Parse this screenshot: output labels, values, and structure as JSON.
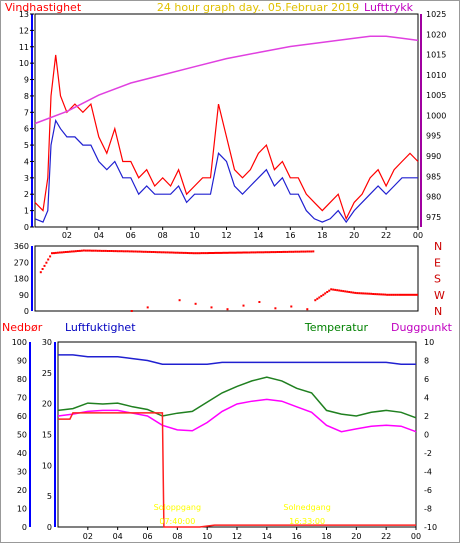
{
  "title": "24 hour graph day.. 05.Februar 2019",
  "colors": {
    "wind": "#ff0000",
    "pressure": "#e040e0",
    "humidity": "#2020d0",
    "temperature": "#208020",
    "dewpoint": "#ff00ff",
    "precip": "#ff2020",
    "sun": "#ffff00",
    "axis_left": "#0000ff",
    "axis_right": "#a000a0"
  },
  "chart_data": [
    {
      "type": "line",
      "id": "wind-pressure",
      "labels": {
        "left": "Vindhastighet",
        "right": "Lufttrykk"
      },
      "x_ticks": [
        "02",
        "04",
        "06",
        "08",
        "10",
        "12",
        "14",
        "16",
        "18",
        "20",
        "22",
        "00"
      ],
      "y_left": {
        "range": [
          0,
          13
        ],
        "ticks": [
          0,
          1,
          2,
          3,
          4,
          5,
          6,
          7,
          8,
          9,
          10,
          11,
          12,
          13
        ]
      },
      "y_right": {
        "range": [
          972.5,
          1025
        ],
        "ticks": [
          975,
          980,
          985,
          990,
          995,
          1000,
          1005,
          1010,
          1015,
          1020,
          1025
        ]
      },
      "series": [
        {
          "key": "gust",
          "axis": "left",
          "x": [
            0.0,
            0.5,
            0.8,
            1.0,
            1.3,
            1.6,
            2.0,
            2.5,
            3.0,
            3.5,
            4.0,
            4.5,
            5.0,
            5.5,
            6.0,
            6.5,
            7.0,
            7.5,
            8.0,
            8.5,
            9.0,
            9.5,
            10.0,
            10.5,
            11.0,
            11.5,
            12.0,
            12.5,
            13.0,
            13.5,
            14.0,
            14.5,
            15.0,
            15.5,
            16.0,
            16.5,
            17.0,
            17.5,
            18.0,
            18.5,
            19.0,
            19.5,
            20.0,
            20.5,
            21.0,
            21.5,
            22.0,
            22.5,
            23.0,
            23.5,
            24.0
          ],
          "y": [
            1.5,
            1.0,
            3.0,
            8.0,
            10.5,
            8.0,
            7.0,
            7.5,
            7.0,
            7.5,
            5.5,
            4.5,
            6.0,
            4.0,
            4.0,
            3.0,
            3.5,
            2.5,
            3.0,
            2.5,
            3.5,
            2.0,
            2.5,
            3.0,
            3.0,
            7.5,
            5.5,
            3.5,
            3.0,
            3.5,
            4.5,
            5.0,
            3.5,
            4.0,
            3.0,
            3.0,
            2.0,
            1.5,
            1.0,
            1.5,
            2.0,
            0.5,
            1.5,
            2.0,
            3.0,
            3.5,
            2.5,
            3.5,
            4.0,
            4.5,
            4.0
          ]
        },
        {
          "key": "wind",
          "axis": "left",
          "x": [
            0.0,
            0.5,
            0.8,
            1.0,
            1.3,
            1.6,
            2.0,
            2.5,
            3.0,
            3.5,
            4.0,
            4.5,
            5.0,
            5.5,
            6.0,
            6.5,
            7.0,
            7.5,
            8.0,
            8.5,
            9.0,
            9.5,
            10.0,
            10.5,
            11.0,
            11.5,
            12.0,
            12.5,
            13.0,
            13.5,
            14.0,
            14.5,
            15.0,
            15.5,
            16.0,
            16.5,
            17.0,
            17.5,
            18.0,
            18.5,
            19.0,
            19.5,
            20.0,
            20.5,
            21.0,
            21.5,
            22.0,
            22.5,
            23.0,
            23.5,
            24.0
          ],
          "y": [
            0.5,
            0.3,
            1.0,
            5.0,
            6.5,
            6.0,
            5.5,
            5.5,
            5.0,
            5.0,
            4.0,
            3.5,
            4.0,
            3.0,
            3.0,
            2.0,
            2.5,
            2.0,
            2.0,
            2.0,
            2.5,
            1.5,
            2.0,
            2.0,
            2.0,
            4.5,
            4.0,
            2.5,
            2.0,
            2.5,
            3.0,
            3.5,
            2.5,
            3.0,
            2.0,
            2.0,
            1.0,
            0.5,
            0.3,
            0.5,
            1.0,
            0.3,
            1.0,
            1.5,
            2.0,
            2.5,
            2.0,
            2.5,
            3.0,
            3.0,
            3.0
          ]
        },
        {
          "key": "pressure",
          "axis": "right",
          "x": [
            0,
            2,
            4,
            6,
            8,
            10,
            12,
            14,
            16,
            18,
            20,
            21,
            22,
            23,
            24
          ],
          "y": [
            998,
            1001,
            1005,
            1008,
            1010,
            1012,
            1014,
            1015.5,
            1017,
            1018,
            1019,
            1019.5,
            1019.5,
            1019,
            1018.5
          ]
        }
      ]
    },
    {
      "type": "scatter",
      "id": "wind-direction",
      "y_ticks": [
        0,
        90,
        180,
        270,
        360
      ],
      "y_labels": [
        "0",
        "90",
        "180",
        "270",
        "360"
      ],
      "compass": [
        "N",
        "W",
        "S",
        "E",
        "N"
      ],
      "series": [
        {
          "key": "dir_main",
          "segments": [
            [
              0.3,
              215
            ],
            [
              1.0,
              320
            ],
            [
              3.0,
              335
            ],
            [
              6.0,
              330
            ],
            [
              10.0,
              320
            ],
            [
              14.0,
              325
            ],
            [
              17.5,
              330
            ]
          ]
        },
        {
          "key": "dir_evening",
          "segments": [
            [
              17.5,
              60
            ],
            [
              18.5,
              120
            ],
            [
              20.0,
              100
            ],
            [
              22.0,
              90
            ],
            [
              24.0,
              90
            ]
          ]
        },
        {
          "key": "dir_sparse",
          "points": [
            [
              6.0,
              0
            ],
            [
              7.0,
              20
            ],
            [
              9.0,
              60
            ],
            [
              10.0,
              40
            ],
            [
              11.0,
              20
            ],
            [
              12.0,
              10
            ],
            [
              13.0,
              30
            ],
            [
              14.0,
              50
            ],
            [
              15.0,
              15
            ],
            [
              16.0,
              25
            ],
            [
              17.0,
              10
            ]
          ]
        }
      ]
    },
    {
      "type": "line",
      "id": "precip-humidity-temp",
      "labels": {
        "precip": "Nedbør",
        "humidity": "Luftfuktighet",
        "temperature": "Temperatur",
        "dewpoint": "Duggpunkt"
      },
      "x_ticks": [
        "02",
        "04",
        "06",
        "08",
        "10",
        "12",
        "14",
        "16",
        "18",
        "20",
        "22",
        "00"
      ],
      "y_humidity": {
        "range": [
          0,
          100
        ],
        "ticks": [
          0,
          10,
          20,
          30,
          40,
          50,
          60,
          70,
          80,
          90,
          100
        ]
      },
      "y_precip": {
        "range": [
          0,
          30
        ],
        "ticks": [
          0,
          5,
          10,
          15,
          20,
          25,
          30
        ]
      },
      "y_temp": {
        "range": [
          -10,
          10
        ],
        "ticks": [
          -10,
          -8,
          -6,
          -4,
          -2,
          0,
          2,
          4,
          6,
          8,
          10
        ]
      },
      "annotations": [
        {
          "text": "Soloppgang",
          "x": 8.0
        },
        {
          "text": "Solnedgang",
          "x": 16.7
        },
        {
          "text": "07:40:00",
          "x": 8.0
        },
        {
          "text": "16:33:00",
          "x": 16.7
        }
      ],
      "series": [
        {
          "key": "humidity",
          "axis": "humidity",
          "x": [
            0,
            1,
            2,
            3,
            4,
            5,
            6,
            7,
            8,
            9,
            10,
            11,
            12,
            13,
            14,
            15,
            16,
            17,
            18,
            19,
            20,
            21,
            22,
            23,
            24
          ],
          "y": [
            93,
            93,
            92,
            92,
            92,
            91,
            90,
            88,
            88,
            88,
            88,
            89,
            89,
            89,
            89,
            89,
            89,
            89,
            89,
            89,
            89,
            89,
            89,
            88,
            88
          ]
        },
        {
          "key": "temperature",
          "axis": "temp",
          "x": [
            0,
            1,
            2,
            3,
            4,
            5,
            6,
            7,
            8,
            9,
            10,
            11,
            12,
            13,
            14,
            15,
            16,
            17,
            18,
            19,
            20,
            21,
            22,
            23,
            24
          ],
          "y": [
            2.6,
            2.8,
            3.4,
            3.3,
            3.4,
            3.0,
            2.7,
            2.0,
            2.3,
            2.5,
            3.5,
            4.5,
            5.2,
            5.8,
            6.2,
            5.8,
            5.0,
            4.5,
            2.6,
            2.2,
            2.0,
            2.4,
            2.6,
            2.4,
            1.8
          ]
        },
        {
          "key": "dewpoint",
          "axis": "temp",
          "x": [
            0,
            1,
            2,
            3,
            4,
            5,
            6,
            7,
            8,
            9,
            10,
            11,
            12,
            13,
            14,
            15,
            16,
            17,
            18,
            19,
            20,
            21,
            22,
            23,
            24
          ],
          "y": [
            2.0,
            2.2,
            2.5,
            2.6,
            2.6,
            2.3,
            2.0,
            1.0,
            0.5,
            0.4,
            1.3,
            2.5,
            3.3,
            3.6,
            3.8,
            3.6,
            3.0,
            2.4,
            1.0,
            0.3,
            0.6,
            0.9,
            1.0,
            0.9,
            0.3
          ]
        },
        {
          "key": "precip",
          "axis": "precip",
          "step": true,
          "x": [
            0,
            0.8,
            1.0,
            7.0,
            7.1,
            9.5,
            10.5,
            24
          ],
          "y": [
            17.5,
            17.5,
            18.5,
            18.5,
            0,
            0,
            0.3,
            0.3
          ]
        }
      ]
    }
  ]
}
